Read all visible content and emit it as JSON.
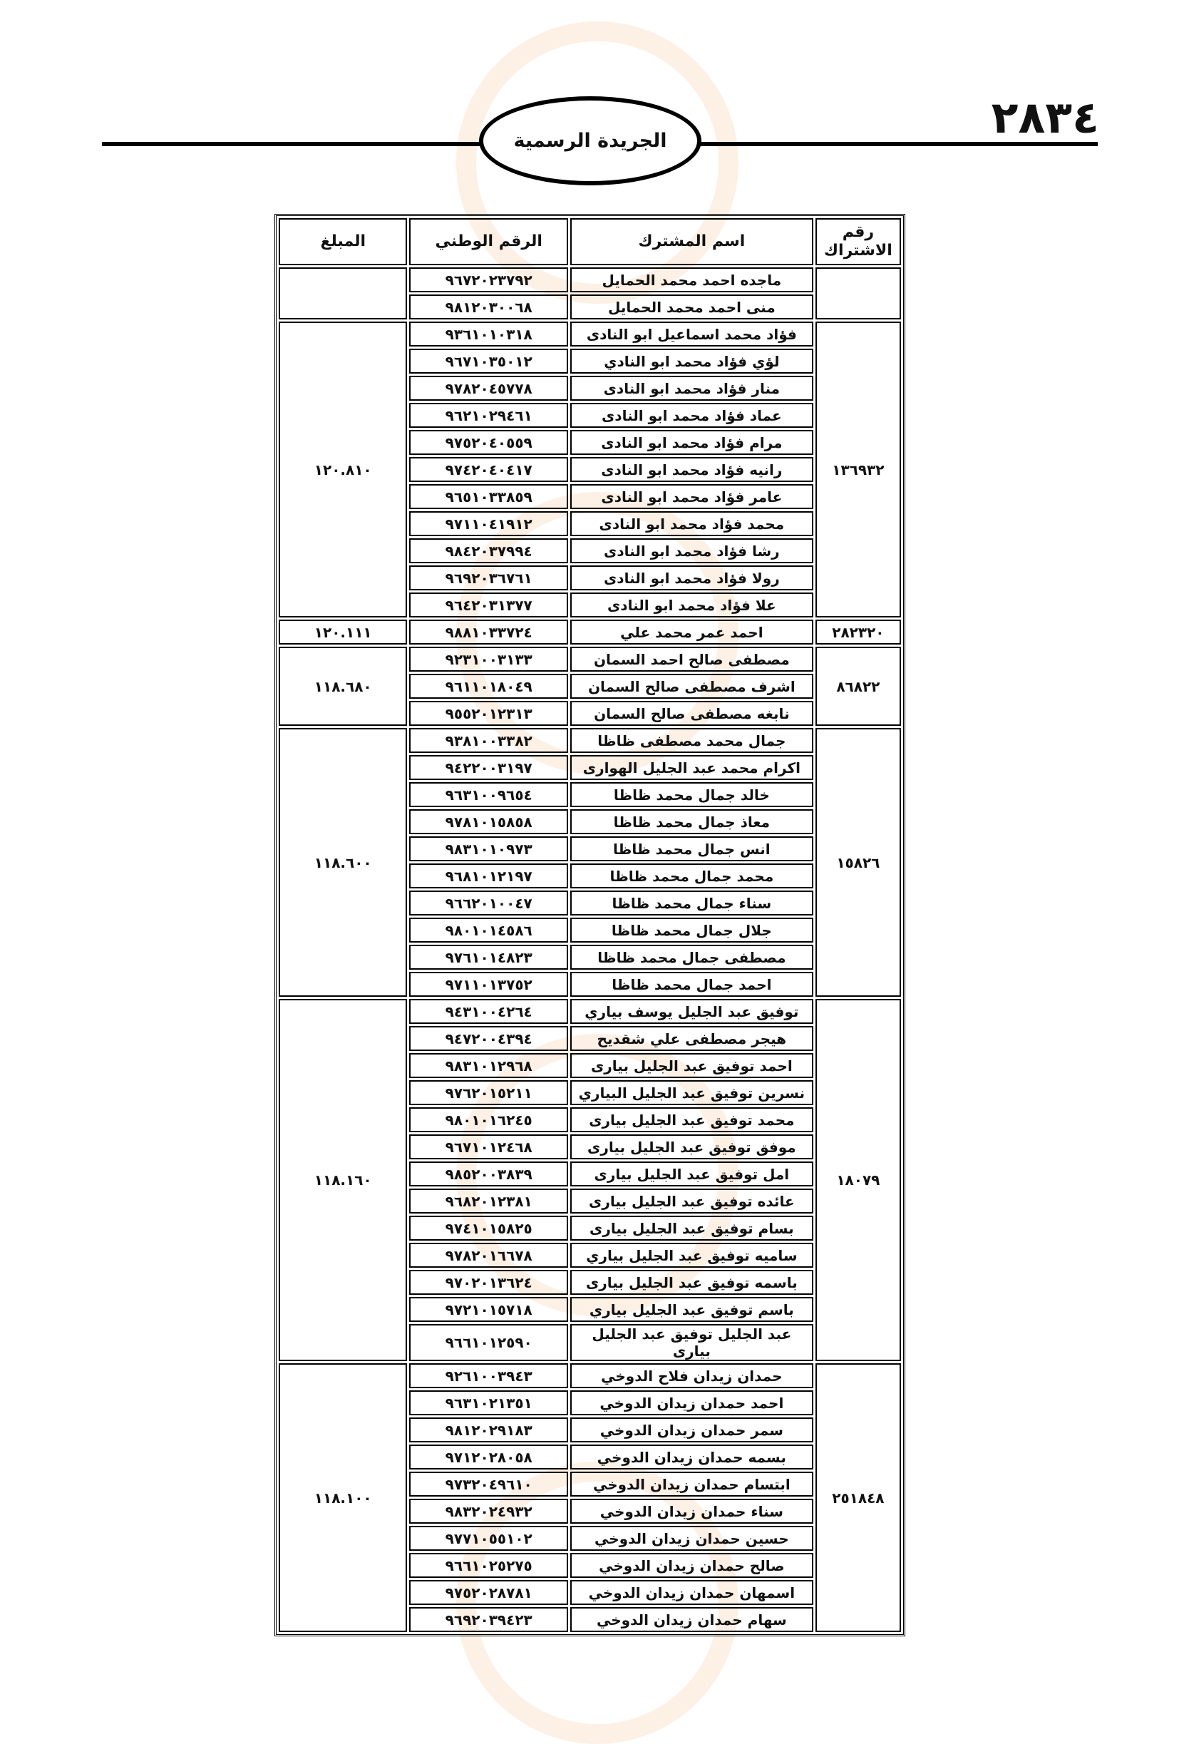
{
  "page_number": "٢٨٣٤",
  "publication_title": "الجريدة الرسمية",
  "table": {
    "headers": {
      "subscription_no": "رقم الاشتراك",
      "subscriber_name": "اسم المشترك",
      "national_id": "الرقم الوطني",
      "amount": "المبلغ"
    },
    "groups": [
      {
        "subscription_no": "",
        "amount": "",
        "members": [
          {
            "name": "ماجده احمد محمد الحمايل",
            "national_id": "٩٦٧٢٠٢٣٧٩٢"
          },
          {
            "name": "منى احمد محمد الحمايل",
            "national_id": "٩٨١٢٠٣٠٠٦٨"
          }
        ]
      },
      {
        "subscription_no": "١٣٦٩٣٢",
        "amount": "١٢٠.٨١٠",
        "members": [
          {
            "name": "فؤاد محمد اسماعيل ابو النادى",
            "national_id": "٩٣٦١٠١٠٣١٨"
          },
          {
            "name": "لؤي فؤاد محمد ابو النادي",
            "national_id": "٩٦٧١٠٣٥٠١٢"
          },
          {
            "name": "منار فؤاد محمد ابو النادى",
            "national_id": "٩٧٨٢٠٤٥٧٧٨"
          },
          {
            "name": "عماد فؤاد محمد ابو النادى",
            "national_id": "٩٦٢١٠٢٩٤٦١"
          },
          {
            "name": "مرام فؤاد محمد ابو النادى",
            "national_id": "٩٧٥٢٠٤٠٥٥٩"
          },
          {
            "name": "رانيه فؤاد محمد ابو النادى",
            "national_id": "٩٧٤٢٠٤٠٤١٧"
          },
          {
            "name": "عامر فؤاد محمد ابو النادى",
            "national_id": "٩٦٥١٠٣٣٨٥٩"
          },
          {
            "name": "محمد فؤاد محمد ابو النادى",
            "national_id": "٩٧١١٠٤١٩١٢"
          },
          {
            "name": "رشا فؤاد محمد ابو النادى",
            "national_id": "٩٨٤٢٠٣٧٩٩٤"
          },
          {
            "name": "رولا فؤاد محمد ابو النادى",
            "national_id": "٩٦٩٢٠٣٦٧٦١"
          },
          {
            "name": "علا فؤاد محمد ابو النادى",
            "national_id": "٩٦٤٢٠٣١٣٧٧"
          }
        ]
      },
      {
        "subscription_no": "٢٨٢٣٢٠",
        "amount": "١٢٠.١١١",
        "members": [
          {
            "name": "احمد عمر محمد علي",
            "national_id": "٩٨٨١٠٣٣٧٢٤"
          }
        ]
      },
      {
        "subscription_no": "٨٦٨٢٢",
        "amount": "١١٨.٦٨٠",
        "members": [
          {
            "name": "مصطفى صالح احمد السمان",
            "national_id": "٩٢٣١٠٠٣١٣٣"
          },
          {
            "name": "اشرف مصطفى صالح السمان",
            "national_id": "٩٦١١٠١٨٠٤٩"
          },
          {
            "name": "نابغه مصطفى صالح السمان",
            "national_id": "٩٥٥٢٠١٢٣١٣"
          }
        ]
      },
      {
        "subscription_no": "١٥٨٢٦",
        "amount": "١١٨.٦٠٠",
        "members": [
          {
            "name": "جمال محمد مصطفى ظاظا",
            "national_id": "٩٣٨١٠٠٣٣٨٢"
          },
          {
            "name": "اكرام محمد عبد الجليل الهوارى",
            "national_id": "٩٤٢٢٠٠٣١٩٧"
          },
          {
            "name": "خالد جمال محمد ظاظا",
            "national_id": "٩٦٣١٠٠٩٦٥٤"
          },
          {
            "name": "معاذ جمال محمد ظاظا",
            "national_id": "٩٧٨١٠١٥٨٥٨"
          },
          {
            "name": "انس جمال محمد ظاظا",
            "national_id": "٩٨٣١٠١٠٩٧٣"
          },
          {
            "name": "محمد جمال محمد ظاظا",
            "national_id": "٩٦٨١٠١٢١٩٧"
          },
          {
            "name": "سناء جمال محمد ظاظا",
            "national_id": "٩٦٦٢٠١٠٠٤٧"
          },
          {
            "name": "جلال جمال محمد ظاظا",
            "national_id": "٩٨٠١٠١٤٥٨٦"
          },
          {
            "name": "مصطفى جمال محمد ظاظا",
            "national_id": "٩٧٦١٠١٤٨٢٣"
          },
          {
            "name": "احمد جمال محمد ظاظا",
            "national_id": "٩٧١١٠١٣٧٥٢"
          }
        ]
      },
      {
        "subscription_no": "١٨٠٧٩",
        "amount": "١١٨.١٦٠",
        "members": [
          {
            "name": "توفيق عبد الجليل يوسف بياري",
            "national_id": "٩٤٣١٠٠٤٢٦٤"
          },
          {
            "name": "هيجر مصطفى علي شقديح",
            "national_id": "٩٤٧٢٠٠٤٣٩٤"
          },
          {
            "name": "احمد توفيق عبد الجليل بيارى",
            "national_id": "٩٨٣١٠١٢٩٦٨"
          },
          {
            "name": "نسرين توفيق عبد الجليل البياري",
            "national_id": "٩٧٦٢٠١٥٢١١"
          },
          {
            "name": "محمد توفيق عبد الجليل بيارى",
            "national_id": "٩٨٠١٠١٦٢٤٥"
          },
          {
            "name": "موفق توفيق عبد الجليل بيارى",
            "national_id": "٩٦٧١٠١٢٤٦٨"
          },
          {
            "name": "امل توفيق عبد الجليل بيارى",
            "national_id": "٩٨٥٢٠٠٣٨٣٩"
          },
          {
            "name": "عائده توفيق عبد الجليل بيارى",
            "national_id": "٩٦٨٢٠١٢٣٨١"
          },
          {
            "name": "بسام توفيق عبد الجليل بيارى",
            "national_id": "٩٧٤١٠١٥٨٢٥"
          },
          {
            "name": "ساميه توفيق عبد الجليل بياري",
            "national_id": "٩٧٨٢٠١٦٦٧٨"
          },
          {
            "name": "باسمه توفيق عبد الجليل بيارى",
            "national_id": "٩٧٠٢٠١٣٦٢٤"
          },
          {
            "name": "باسم توفيق عبد الجليل بياري",
            "national_id": "٩٧٢١٠١٥٧١٨"
          },
          {
            "name": "عبد الجليل توفيق عبد الجليل بيارى",
            "national_id": "٩٦٦١٠١٢٥٩٠"
          }
        ]
      },
      {
        "subscription_no": "٢٥١٨٤٨",
        "amount": "١١٨.١٠٠",
        "members": [
          {
            "name": "حمدان زيدان فلاح الدوخي",
            "national_id": "٩٢٦١٠٠٣٩٤٣"
          },
          {
            "name": "احمد حمدان زيدان الدوخي",
            "national_id": "٩٦٣١٠٢١٣٥١"
          },
          {
            "name": "سمر حمدان زيدان الدوخي",
            "national_id": "٩٨١٢٠٢٩١٨٣"
          },
          {
            "name": "بسمه حمدان زيدان الدوخي",
            "national_id": "٩٧١٢٠٢٨٠٥٨"
          },
          {
            "name": "ابتسام حمدان زيدان الدوخي",
            "national_id": "٩٧٣٢٠٤٩٦١٠"
          },
          {
            "name": "سناء حمدان زيدان الدوخي",
            "national_id": "٩٨٣٢٠٢٤٩٣٢"
          },
          {
            "name": "حسين حمدان زيدان الدوخي",
            "national_id": "٩٧٧١٠٥٥١٠٢"
          },
          {
            "name": "صالح حمدان زيدان الدوخي",
            "national_id": "٩٦٦١٠٢٥٢٧٥"
          },
          {
            "name": "اسمهان حمدان زيدان الدوخي",
            "national_id": "٩٧٥٢٠٢٨٧٨١"
          },
          {
            "name": "سهام حمدان زيدان الدوخي",
            "national_id": "٩٦٩٢٠٣٩٤٢٣"
          }
        ]
      }
    ]
  }
}
